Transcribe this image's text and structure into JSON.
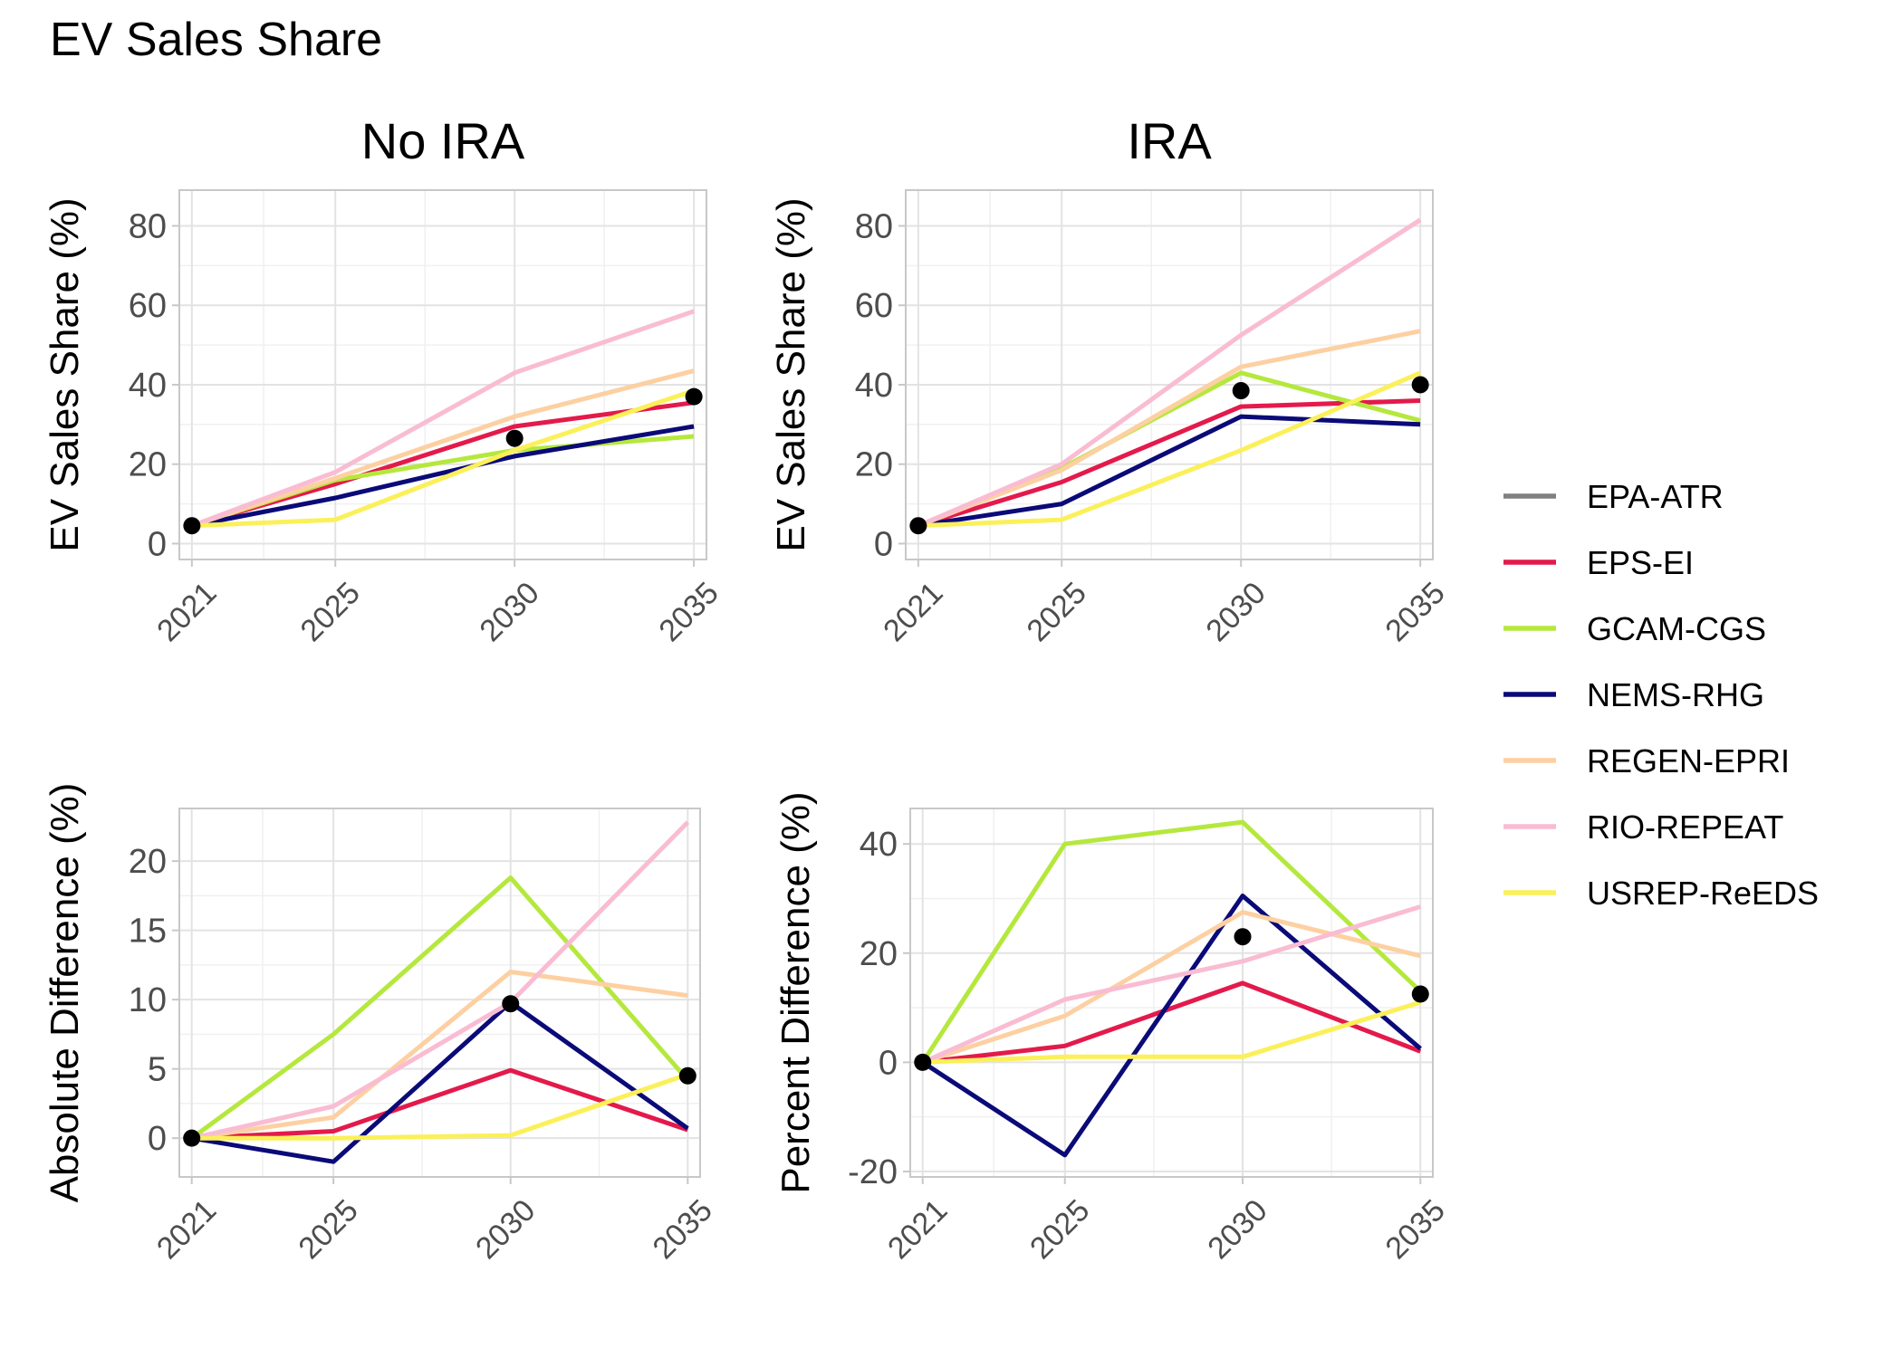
{
  "title": "EV Sales Share",
  "chart_data": [
    {
      "type": "line",
      "panel": "top-left",
      "facet_title": "No IRA",
      "xlabel": "",
      "ylabel": "EV Sales Share (%)",
      "x": [
        2021,
        2025,
        2030,
        2035
      ],
      "x_tick_labels": [
        "2021",
        "2025",
        "2030",
        "2035"
      ],
      "ylim": [
        -4,
        89
      ],
      "y_ticks": [
        0,
        20,
        40,
        60,
        80
      ],
      "y_tick_labels": [
        "0",
        "20",
        "40",
        "60",
        "80"
      ],
      "grid": true,
      "series": [
        {
          "name": "EPS-EI",
          "values": [
            4.5,
            15,
            29.5,
            35.5
          ]
        },
        {
          "name": "GCAM-CGS",
          "values": [
            4.5,
            16,
            23.5,
            27
          ]
        },
        {
          "name": "NEMS-RHG",
          "values": [
            4.5,
            11.5,
            22,
            29.5
          ]
        },
        {
          "name": "REGEN-EPRI",
          "values": [
            4.5,
            16.5,
            32,
            43.5
          ]
        },
        {
          "name": "RIO-REPEAT",
          "values": [
            4.5,
            18,
            43,
            58.5
          ]
        },
        {
          "name": "USREP-ReEDS",
          "values": [
            4.5,
            6,
            23.5,
            38.5
          ]
        }
      ],
      "points": [
        [
          2021,
          4.5
        ],
        [
          2030,
          26.5
        ],
        [
          2035,
          37
        ]
      ]
    },
    {
      "type": "line",
      "panel": "top-right",
      "facet_title": "IRA",
      "xlabel": "",
      "ylabel": "EV Sales Share (%)",
      "x": [
        2021,
        2025,
        2030,
        2035
      ],
      "x_tick_labels": [
        "2021",
        "2025",
        "2030",
        "2035"
      ],
      "ylim": [
        -4,
        89
      ],
      "y_ticks": [
        0,
        20,
        40,
        60,
        80
      ],
      "y_tick_labels": [
        "0",
        "20",
        "40",
        "60",
        "80"
      ],
      "grid": true,
      "series": [
        {
          "name": "EPS-EI",
          "values": [
            4.5,
            15.5,
            34.5,
            36
          ]
        },
        {
          "name": "GCAM-CGS",
          "values": [
            4.5,
            19,
            43,
            31
          ]
        },
        {
          "name": "NEMS-RHG",
          "values": [
            4.5,
            10,
            32,
            30
          ]
        },
        {
          "name": "REGEN-EPRI",
          "values": [
            4.5,
            18.5,
            44.5,
            53.5
          ]
        },
        {
          "name": "RIO-REPEAT",
          "values": [
            4.5,
            20,
            52.5,
            81.5
          ]
        },
        {
          "name": "USREP-ReEDS",
          "values": [
            4.5,
            6,
            23.5,
            43
          ]
        }
      ],
      "points": [
        [
          2021,
          4.5
        ],
        [
          2030,
          38.5
        ],
        [
          2035,
          40
        ]
      ]
    },
    {
      "type": "line",
      "panel": "bottom-left",
      "facet_title": "",
      "xlabel": "",
      "ylabel": "Absolute Difference (%)",
      "x": [
        2021,
        2025,
        2030,
        2035
      ],
      "x_tick_labels": [
        "2021",
        "2025",
        "2030",
        "2035"
      ],
      "ylim": [
        -2.8,
        23.8
      ],
      "y_ticks": [
        0,
        5,
        10,
        15,
        20
      ],
      "y_tick_labels": [
        "0",
        "5",
        "10",
        "15",
        "20"
      ],
      "grid": true,
      "series": [
        {
          "name": "EPS-EI",
          "values": [
            0,
            0.5,
            4.9,
            0.6
          ]
        },
        {
          "name": "GCAM-CGS",
          "values": [
            0,
            7.5,
            18.8,
            4.2
          ]
        },
        {
          "name": "NEMS-RHG",
          "values": [
            0,
            -1.7,
            9.8,
            0.7
          ]
        },
        {
          "name": "REGEN-EPRI",
          "values": [
            0,
            1.5,
            12,
            10.3
          ]
        },
        {
          "name": "RIO-REPEAT",
          "values": [
            0,
            2.3,
            9.8,
            22.8
          ]
        },
        {
          "name": "USREP-ReEDS",
          "values": [
            0,
            0,
            0.2,
            4.6
          ]
        }
      ],
      "points": [
        [
          2021,
          0
        ],
        [
          2030,
          9.7
        ],
        [
          2035,
          4.5
        ]
      ]
    },
    {
      "type": "line",
      "panel": "bottom-right",
      "facet_title": "",
      "xlabel": "",
      "ylabel": "Percent Difference (%)",
      "x": [
        2021,
        2025,
        2030,
        2035
      ],
      "x_tick_labels": [
        "2021",
        "2025",
        "2030",
        "2035"
      ],
      "ylim": [
        -21,
        46.5
      ],
      "y_ticks": [
        -20,
        0,
        20,
        40
      ],
      "y_tick_labels": [
        "-20",
        "0",
        "20",
        "40"
      ],
      "grid": true,
      "series": [
        {
          "name": "EPS-EI",
          "values": [
            0,
            3,
            14.5,
            2
          ]
        },
        {
          "name": "GCAM-CGS",
          "values": [
            0,
            40,
            44,
            13
          ]
        },
        {
          "name": "NEMS-RHG",
          "values": [
            0,
            -17,
            30.5,
            2.5
          ]
        },
        {
          "name": "REGEN-EPRI",
          "values": [
            0,
            8.5,
            27.5,
            19.5
          ]
        },
        {
          "name": "RIO-REPEAT",
          "values": [
            0,
            11.5,
            18.5,
            28.5
          ]
        },
        {
          "name": "USREP-ReEDS",
          "values": [
            0,
            1,
            1,
            11
          ]
        }
      ],
      "points": [
        [
          2021,
          0
        ],
        [
          2030,
          23
        ],
        [
          2035,
          12.5
        ]
      ]
    }
  ],
  "legend": {
    "placement": "right",
    "items": [
      {
        "name": "EPA-ATR",
        "color": "#808080"
      },
      {
        "name": "EPS-EI",
        "color": "#e31a4b"
      },
      {
        "name": "GCAM-CGS",
        "color": "#b5e83d"
      },
      {
        "name": "NEMS-RHG",
        "color": "#0a0a78"
      },
      {
        "name": "REGEN-EPRI",
        "color": "#fdd0a2"
      },
      {
        "name": "RIO-REPEAT",
        "color": "#f9bcd3"
      },
      {
        "name": "USREP-ReEDS",
        "color": "#fbf059"
      }
    ]
  },
  "point_color": "#000000"
}
